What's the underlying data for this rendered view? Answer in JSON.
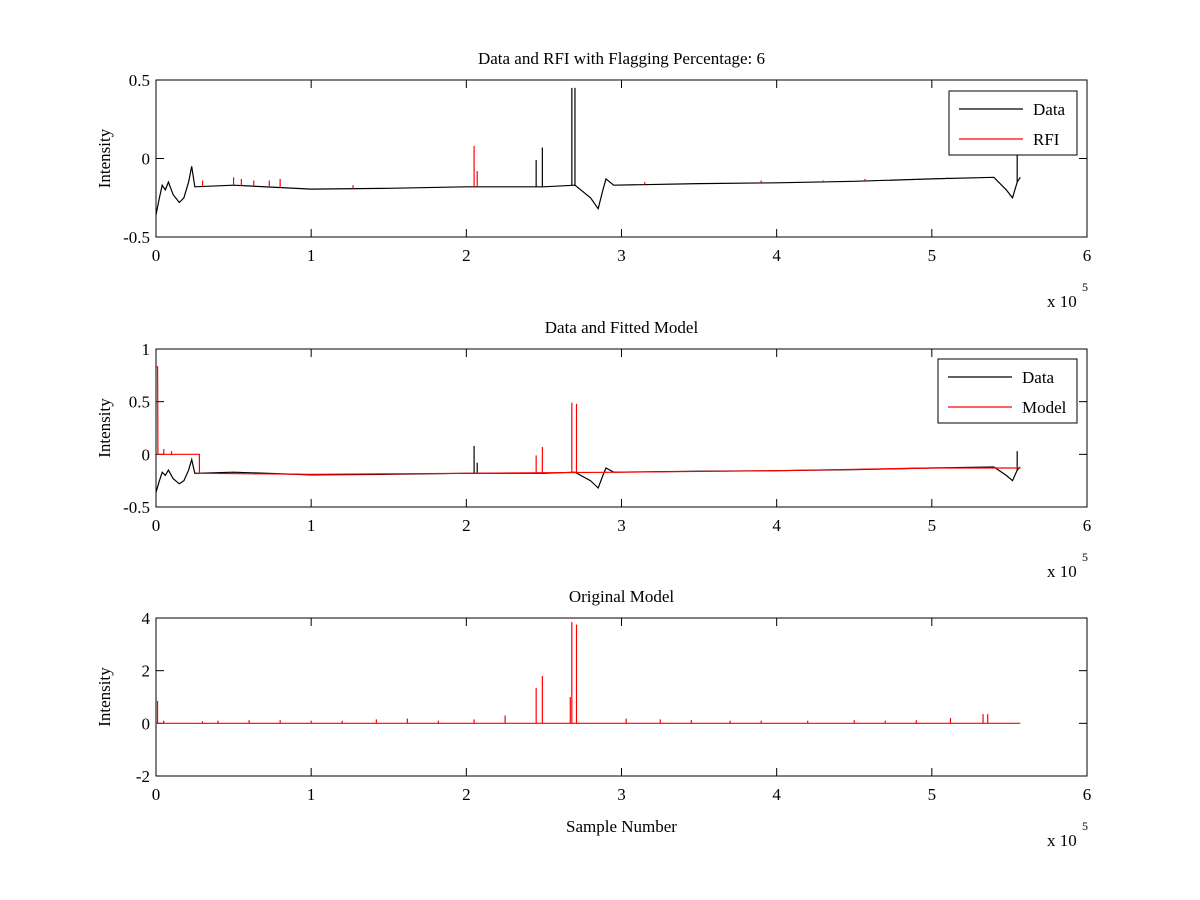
{
  "colors": {
    "data": "#000000",
    "rfi": "#ff0000",
    "axes": "#000000",
    "background": "#ffffff"
  },
  "x_exponent_label": {
    "base": "x 10",
    "exponent": "5"
  },
  "chart_data": [
    {
      "type": "line",
      "title": "Data and RFI with Flagging Percentage: 6",
      "xlabel": "",
      "ylabel": "Intensity",
      "xlim": [
        0,
        6
      ],
      "ylim": [
        -0.5,
        0.5
      ],
      "x_ticks": [
        "0",
        "1",
        "2",
        "3",
        "4",
        "5",
        "6"
      ],
      "y_ticks": [
        "-0.5",
        "0",
        "0.5"
      ],
      "legend": {
        "placement": "top-right",
        "entries": [
          "Data",
          "RFI"
        ]
      },
      "series": [
        {
          "name": "Data",
          "color": "#000000",
          "points": [
            [
              0,
              -0.36
            ],
            [
              0.02,
              -0.26
            ],
            [
              0.04,
              -0.17
            ],
            [
              0.06,
              -0.2
            ],
            [
              0.08,
              -0.15
            ],
            [
              0.11,
              -0.23
            ],
            [
              0.15,
              -0.28
            ],
            [
              0.18,
              -0.25
            ],
            [
              0.21,
              -0.15
            ],
            [
              0.23,
              -0.05
            ],
            [
              0.25,
              -0.18
            ],
            [
              0.5,
              -0.17
            ],
            [
              1.0,
              -0.195
            ],
            [
              1.5,
              -0.19
            ],
            [
              2.0,
              -0.18
            ],
            [
              2.5,
              -0.18
            ],
            [
              2.7,
              -0.17
            ],
            [
              2.8,
              -0.25
            ],
            [
              2.85,
              -0.32
            ],
            [
              2.88,
              -0.2
            ],
            [
              2.9,
              -0.13
            ],
            [
              2.95,
              -0.17
            ],
            [
              3.5,
              -0.16
            ],
            [
              4.0,
              -0.155
            ],
            [
              4.5,
              -0.145
            ],
            [
              5.0,
              -0.13
            ],
            [
              5.4,
              -0.12
            ],
            [
              5.48,
              -0.2
            ],
            [
              5.52,
              -0.25
            ],
            [
              5.55,
              -0.15
            ],
            [
              5.57,
              -0.12
            ]
          ],
          "spikes": [
            [
              2.45,
              -0.01
            ],
            [
              2.49,
              0.07
            ],
            [
              2.68,
              0.45
            ],
            [
              2.7,
              0.45
            ],
            [
              5.55,
              0.03
            ]
          ]
        },
        {
          "name": "RFI",
          "color": "#ff0000",
          "spikes": [
            [
              0.3,
              -0.14
            ],
            [
              0.5,
              -0.12
            ],
            [
              0.55,
              -0.13
            ],
            [
              0.63,
              -0.14
            ],
            [
              0.73,
              -0.14
            ],
            [
              0.8,
              -0.13
            ],
            [
              1.27,
              -0.17
            ],
            [
              2.05,
              0.08
            ],
            [
              2.07,
              -0.08
            ],
            [
              3.15,
              -0.15
            ],
            [
              3.9,
              -0.14
            ],
            [
              4.3,
              -0.14
            ],
            [
              4.57,
              -0.13
            ],
            [
              4.9,
              -0.13
            ],
            [
              5.1,
              -0.12
            ],
            [
              5.3,
              -0.12
            ]
          ]
        }
      ]
    },
    {
      "type": "line",
      "title": "Data and Fitted Model",
      "xlabel": "",
      "ylabel": "Intensity",
      "xlim": [
        0,
        6
      ],
      "ylim": [
        -0.5,
        1
      ],
      "x_ticks": [
        "0",
        "1",
        "2",
        "3",
        "4",
        "5",
        "6"
      ],
      "y_ticks": [
        "-0.5",
        "0",
        "0.5",
        "1"
      ],
      "legend": {
        "placement": "top-right",
        "entries": [
          "Data",
          "Model"
        ]
      },
      "series": [
        {
          "name": "Data",
          "color": "#000000",
          "points": [
            [
              0,
              -0.36
            ],
            [
              0.02,
              -0.26
            ],
            [
              0.04,
              -0.17
            ],
            [
              0.06,
              -0.2
            ],
            [
              0.08,
              -0.15
            ],
            [
              0.11,
              -0.23
            ],
            [
              0.15,
              -0.28
            ],
            [
              0.18,
              -0.25
            ],
            [
              0.21,
              -0.15
            ],
            [
              0.23,
              -0.05
            ],
            [
              0.25,
              -0.18
            ],
            [
              0.5,
              -0.17
            ],
            [
              1.0,
              -0.195
            ],
            [
              1.5,
              -0.19
            ],
            [
              2.0,
              -0.18
            ],
            [
              2.5,
              -0.18
            ],
            [
              2.7,
              -0.17
            ],
            [
              2.8,
              -0.25
            ],
            [
              2.85,
              -0.32
            ],
            [
              2.88,
              -0.2
            ],
            [
              2.9,
              -0.13
            ],
            [
              2.95,
              -0.17
            ],
            [
              3.5,
              -0.16
            ],
            [
              4.0,
              -0.155
            ],
            [
              4.5,
              -0.145
            ],
            [
              5.0,
              -0.13
            ],
            [
              5.4,
              -0.12
            ],
            [
              5.48,
              -0.2
            ],
            [
              5.52,
              -0.25
            ],
            [
              5.55,
              -0.15
            ],
            [
              5.57,
              -0.12
            ]
          ],
          "spikes": [
            [
              2.05,
              0.08
            ],
            [
              2.07,
              -0.08
            ],
            [
              5.55,
              0.03
            ]
          ]
        },
        {
          "name": "Model",
          "color": "#ff0000",
          "points": [
            [
              0,
              0.83
            ],
            [
              0.01,
              0.83
            ],
            [
              0.012,
              0
            ],
            [
              0.28,
              0
            ],
            [
              0.28,
              -0.18
            ],
            [
              1.0,
              -0.19
            ],
            [
              2.0,
              -0.18
            ],
            [
              3.0,
              -0.17
            ],
            [
              4.0,
              -0.155
            ],
            [
              5.0,
              -0.13
            ],
            [
              5.57,
              -0.13
            ]
          ],
          "spikes": [
            [
              0.05,
              0.05
            ],
            [
              0.1,
              0.03
            ],
            [
              2.45,
              -0.01
            ],
            [
              2.49,
              0.07
            ],
            [
              2.68,
              0.49
            ],
            [
              2.71,
              0.48
            ]
          ]
        }
      ]
    },
    {
      "type": "line",
      "title": "Original Model",
      "xlabel": "Sample Number",
      "ylabel": "Intensity",
      "xlim": [
        0,
        6
      ],
      "ylim": [
        -2,
        4
      ],
      "x_ticks": [
        "0",
        "1",
        "2",
        "3",
        "4",
        "5",
        "6"
      ],
      "y_ticks": [
        "-2",
        "0",
        "2",
        "4"
      ],
      "series": [
        {
          "color": "#ff0000",
          "points": [
            [
              0,
              0
            ],
            [
              5.57,
              0
            ]
          ],
          "spikes": [
            [
              0.01,
              0.85
            ],
            [
              0.05,
              0.1
            ],
            [
              0.3,
              0.08
            ],
            [
              0.4,
              0.1
            ],
            [
              0.6,
              0.12
            ],
            [
              0.8,
              0.12
            ],
            [
              1.0,
              0.1
            ],
            [
              1.2,
              0.1
            ],
            [
              1.42,
              0.15
            ],
            [
              1.62,
              0.18
            ],
            [
              1.82,
              0.1
            ],
            [
              2.05,
              0.15
            ],
            [
              2.25,
              0.3
            ],
            [
              2.45,
              1.35
            ],
            [
              2.49,
              1.8
            ],
            [
              2.67,
              1.0
            ],
            [
              2.68,
              3.85
            ],
            [
              2.71,
              3.75
            ],
            [
              3.03,
              0.18
            ],
            [
              3.25,
              0.15
            ],
            [
              3.45,
              0.12
            ],
            [
              3.7,
              0.1
            ],
            [
              3.9,
              0.1
            ],
            [
              4.2,
              0.1
            ],
            [
              4.5,
              0.12
            ],
            [
              4.7,
              0.1
            ],
            [
              4.9,
              0.12
            ],
            [
              5.12,
              0.2
            ],
            [
              5.33,
              0.35
            ],
            [
              5.36,
              0.35
            ]
          ]
        }
      ]
    }
  ]
}
